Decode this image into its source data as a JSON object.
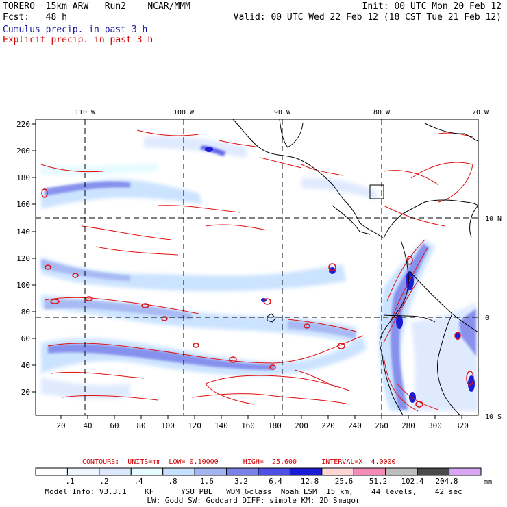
{
  "header": {
    "model": "TORERO  15km ARW   Run2    NCAR/MMM",
    "init": "Init: 00 UTC Mon 20 Feb 12",
    "fcst": "Fcst:   48 h",
    "valid": "Valid: 00 UTC Wed 22 Feb 12 (18 CST Tue 21 Feb 12)",
    "cumulus": "Cumulus precip. in past 3 h",
    "explicit": "Explicit precip. in past 3 h"
  },
  "map": {
    "top_lon_labels": [
      "110 W",
      "100 W",
      "90 W",
      "80 W",
      "70 W"
    ],
    "right_lat_labels": [
      "10 N",
      "0",
      "10 S"
    ],
    "y_ticks": [
      "220",
      "200",
      "180",
      "160",
      "140",
      "120",
      "100",
      "80",
      "60",
      "40",
      "20"
    ],
    "x_ticks": [
      "20",
      "40",
      "60",
      "80",
      "100",
      "120",
      "140",
      "160",
      "180",
      "200",
      "220",
      "240",
      "260",
      "280",
      "300",
      "320"
    ]
  },
  "contours": {
    "units_label": "CONTOURS:  UNITS=mm  LOW= 0.10000      HIGH=  25.600      INTERVAL=X  4.0000"
  },
  "colorbar": {
    "labels": [
      ".1",
      ".2",
      ".4",
      ".8",
      "1.6",
      "3.2",
      "6.4",
      "12.8",
      "25.6",
      "51.2",
      "102.4",
      "204.8"
    ],
    "unit": "mm",
    "colors": [
      "#ffffff",
      "#f0f5ff",
      "#dde8ff",
      "#e4fbff",
      "#c6e0ff",
      "#a3b4f2",
      "#7a82ea",
      "#4e50e6",
      "#1c1cd6",
      "#ffd6d6",
      "#f58cb8",
      "#bdbdbd",
      "#4a4a4a",
      "#d8a6f5"
    ]
  },
  "model_info": {
    "line1": "Model Info: V3.3.1    KF      YSU PBL   WDM 6class  Noah LSM  15 km,    44 levels,    42 sec",
    "line2": "LW: Godd SW: Goddard DIFF: simple KM: 2D Smagor"
  },
  "colors": {
    "cumulus_text": "#1a1aa0",
    "explicit_text": "#d00000",
    "precip_light": "#c6e0ff",
    "precip_mid": "#7a82ea",
    "precip_heavy": "#1c1cd6",
    "contour": "#e01010"
  }
}
